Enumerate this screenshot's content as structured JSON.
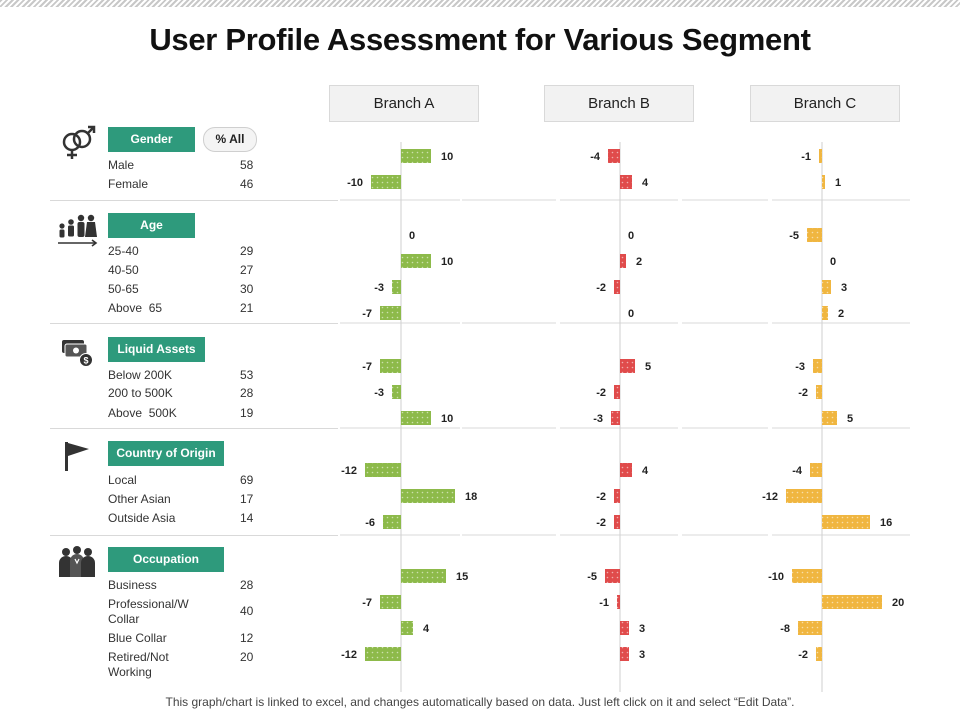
{
  "title": "User Profile Assessment for Various Segment",
  "footer": "This graph/chart is linked to excel, and changes automatically based on data. Just left click on it and select “Edit Data”.",
  "pct_all_label": "% All",
  "segments": [
    {
      "name": "Gender",
      "icon": "gender-icon",
      "rows": [
        {
          "label": "Male",
          "pct": "58"
        },
        {
          "label": "Female",
          "pct": "46"
        }
      ]
    },
    {
      "name": "Age",
      "icon": "family-icon",
      "rows": [
        {
          "label": "25-40",
          "pct": "29"
        },
        {
          "label": "40-50",
          "pct": "27"
        },
        {
          "label": "50-65",
          "pct": "30"
        },
        {
          "label": "Above  65",
          "pct": "21"
        }
      ]
    },
    {
      "name": "Liquid Assets",
      "icon": "money-icon",
      "rows": [
        {
          "label": "Below 200K",
          "pct": "53"
        },
        {
          "label": "200 to 500K",
          "pct": "28"
        },
        {
          "label": "Above  500K",
          "pct": "19"
        }
      ]
    },
    {
      "name": "Country of Origin",
      "icon": "flag-icon",
      "rows": [
        {
          "label": "Local",
          "pct": "69"
        },
        {
          "label": "Other Asian",
          "pct": "17"
        },
        {
          "label": "Outside Asia",
          "pct": "14"
        }
      ]
    },
    {
      "name": "Occupation",
      "icon": "people-icon",
      "rows": [
        {
          "label": "Business",
          "pct": "28"
        },
        {
          "label": "Professional/W Collar",
          "pct": "40"
        },
        {
          "label": "Blue Collar",
          "pct": "12"
        },
        {
          "label": "Retired/Not Working",
          "pct": "20"
        }
      ]
    }
  ],
  "chart_data": {
    "type": "bar",
    "orientation": "horizontal",
    "title": "User Profile Assessment for Various Segment",
    "categories": [
      "Male",
      "Female",
      "25-40",
      "40-50",
      "50-65",
      "Above 65",
      "Below 200K",
      "200 to 500K",
      "Above 500K",
      "Local",
      "Other Asian",
      "Outside Asia",
      "Business",
      "Professional/W Collar",
      "Blue Collar",
      "Retired/Not Working"
    ],
    "series": [
      {
        "name": "Branch A",
        "color": "#8dba4a",
        "values": [
          10,
          -10,
          0,
          10,
          -3,
          -7,
          -7,
          -3,
          10,
          -12,
          18,
          -6,
          15,
          -7,
          4,
          -12
        ]
      },
      {
        "name": "Branch B",
        "color": "#e04b4b",
        "values": [
          -4,
          4,
          0,
          2,
          -2,
          0,
          5,
          -2,
          -3,
          4,
          -2,
          -2,
          -5,
          -1,
          3,
          3
        ]
      },
      {
        "name": "Branch C",
        "color": "#f0b640",
        "values": [
          -1,
          1,
          -5,
          0,
          3,
          2,
          -3,
          -2,
          5,
          -4,
          -12,
          16,
          -10,
          20,
          -8,
          -2
        ]
      }
    ],
    "xlim": [
      -20,
      20
    ]
  }
}
